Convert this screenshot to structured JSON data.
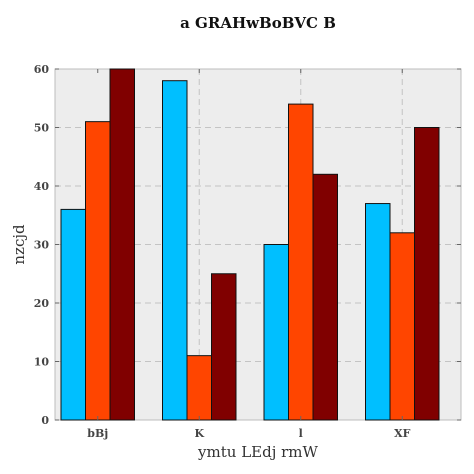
{
  "chart_data": {
    "type": "bar",
    "title": "a GRAHwBoBVC B",
    "xlabel": "ymtu LEdj rmW",
    "ylabel": "nzcjd",
    "categories": [
      "bBj",
      "K",
      "l",
      "XF"
    ],
    "series": [
      {
        "color": "#00bfff",
        "values": [
          36,
          58,
          30,
          37
        ]
      },
      {
        "color": "#ff4500",
        "values": [
          51,
          11,
          54,
          32
        ]
      },
      {
        "color": "#800000",
        "values": [
          60,
          25,
          42,
          50
        ]
      }
    ],
    "ylim": [
      0,
      60
    ],
    "yticks": [
      0,
      10,
      20,
      30,
      40,
      50,
      60
    ],
    "grid": true,
    "legend": "none"
  }
}
